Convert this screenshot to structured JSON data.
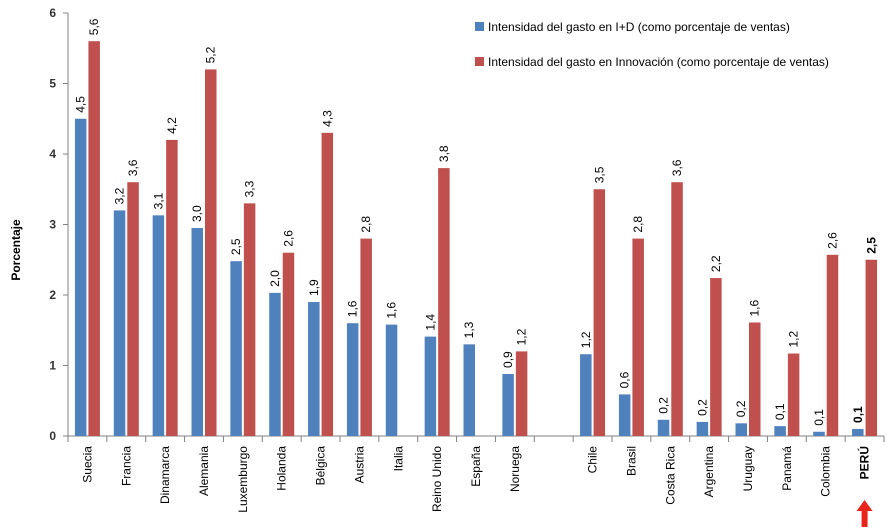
{
  "chart_data": {
    "type": "bar",
    "ylabel": "Porcentaje",
    "ylim": [
      0,
      6
    ],
    "yticks": [
      "0",
      "1",
      "2",
      "3",
      "4",
      "5",
      "6"
    ],
    "legend_position": "top-right",
    "categories": [
      "Suecia",
      "Francia",
      "Dinamarca",
      "Alemania",
      "Luxemburgo",
      "Holanda",
      "Bélgica",
      "Austria",
      "Italia",
      "Reino Unido",
      "España",
      "Noruega",
      "",
      "Chile",
      "Brasil",
      "Costa Rica",
      "Argentina",
      "Uruguay",
      "Panamá",
      "Colombia",
      "PERÚ"
    ],
    "series": [
      {
        "name": "Intensidad del gasto en I+D  (como porcentaje de ventas)",
        "color": "#4f81bd",
        "values": [
          4.5,
          3.2,
          3.13,
          2.95,
          2.48,
          2.03,
          1.9,
          1.6,
          1.58,
          1.41,
          1.3,
          0.88,
          null,
          1.16,
          0.59,
          0.23,
          0.2,
          0.18,
          0.14,
          0.06,
          0.1
        ],
        "labels": [
          "4,5",
          "3,2",
          "3,1",
          "3,0",
          "2,5",
          "2,0",
          "1,9",
          "1,6",
          "1,6",
          "1,4",
          "1,3",
          "0,9",
          "",
          "1,2",
          "0,6",
          "0,2",
          "0,2",
          "0,2",
          "0,1",
          "0,1",
          "0,1"
        ]
      },
      {
        "name": "Intensidad del gasto en Innovación (como porcentaje de ventas)",
        "color": "#c0504d",
        "values": [
          5.6,
          3.6,
          4.2,
          5.2,
          3.3,
          2.6,
          4.3,
          2.8,
          null,
          3.8,
          null,
          1.2,
          null,
          3.5,
          2.8,
          3.6,
          2.24,
          1.61,
          1.17,
          2.57,
          2.5
        ],
        "labels": [
          "5,6",
          "3,6",
          "4,2",
          "5,2",
          "3,3",
          "2,6",
          "4,3",
          "2,8",
          "",
          "3,8",
          "",
          "1,2",
          "",
          "3,5",
          "2,8",
          "3,6",
          "2,2",
          "1,6",
          "1,2",
          "2,6",
          "2,5"
        ]
      }
    ],
    "highlight": "PERÚ",
    "arrow_color": "#e8241b"
  }
}
